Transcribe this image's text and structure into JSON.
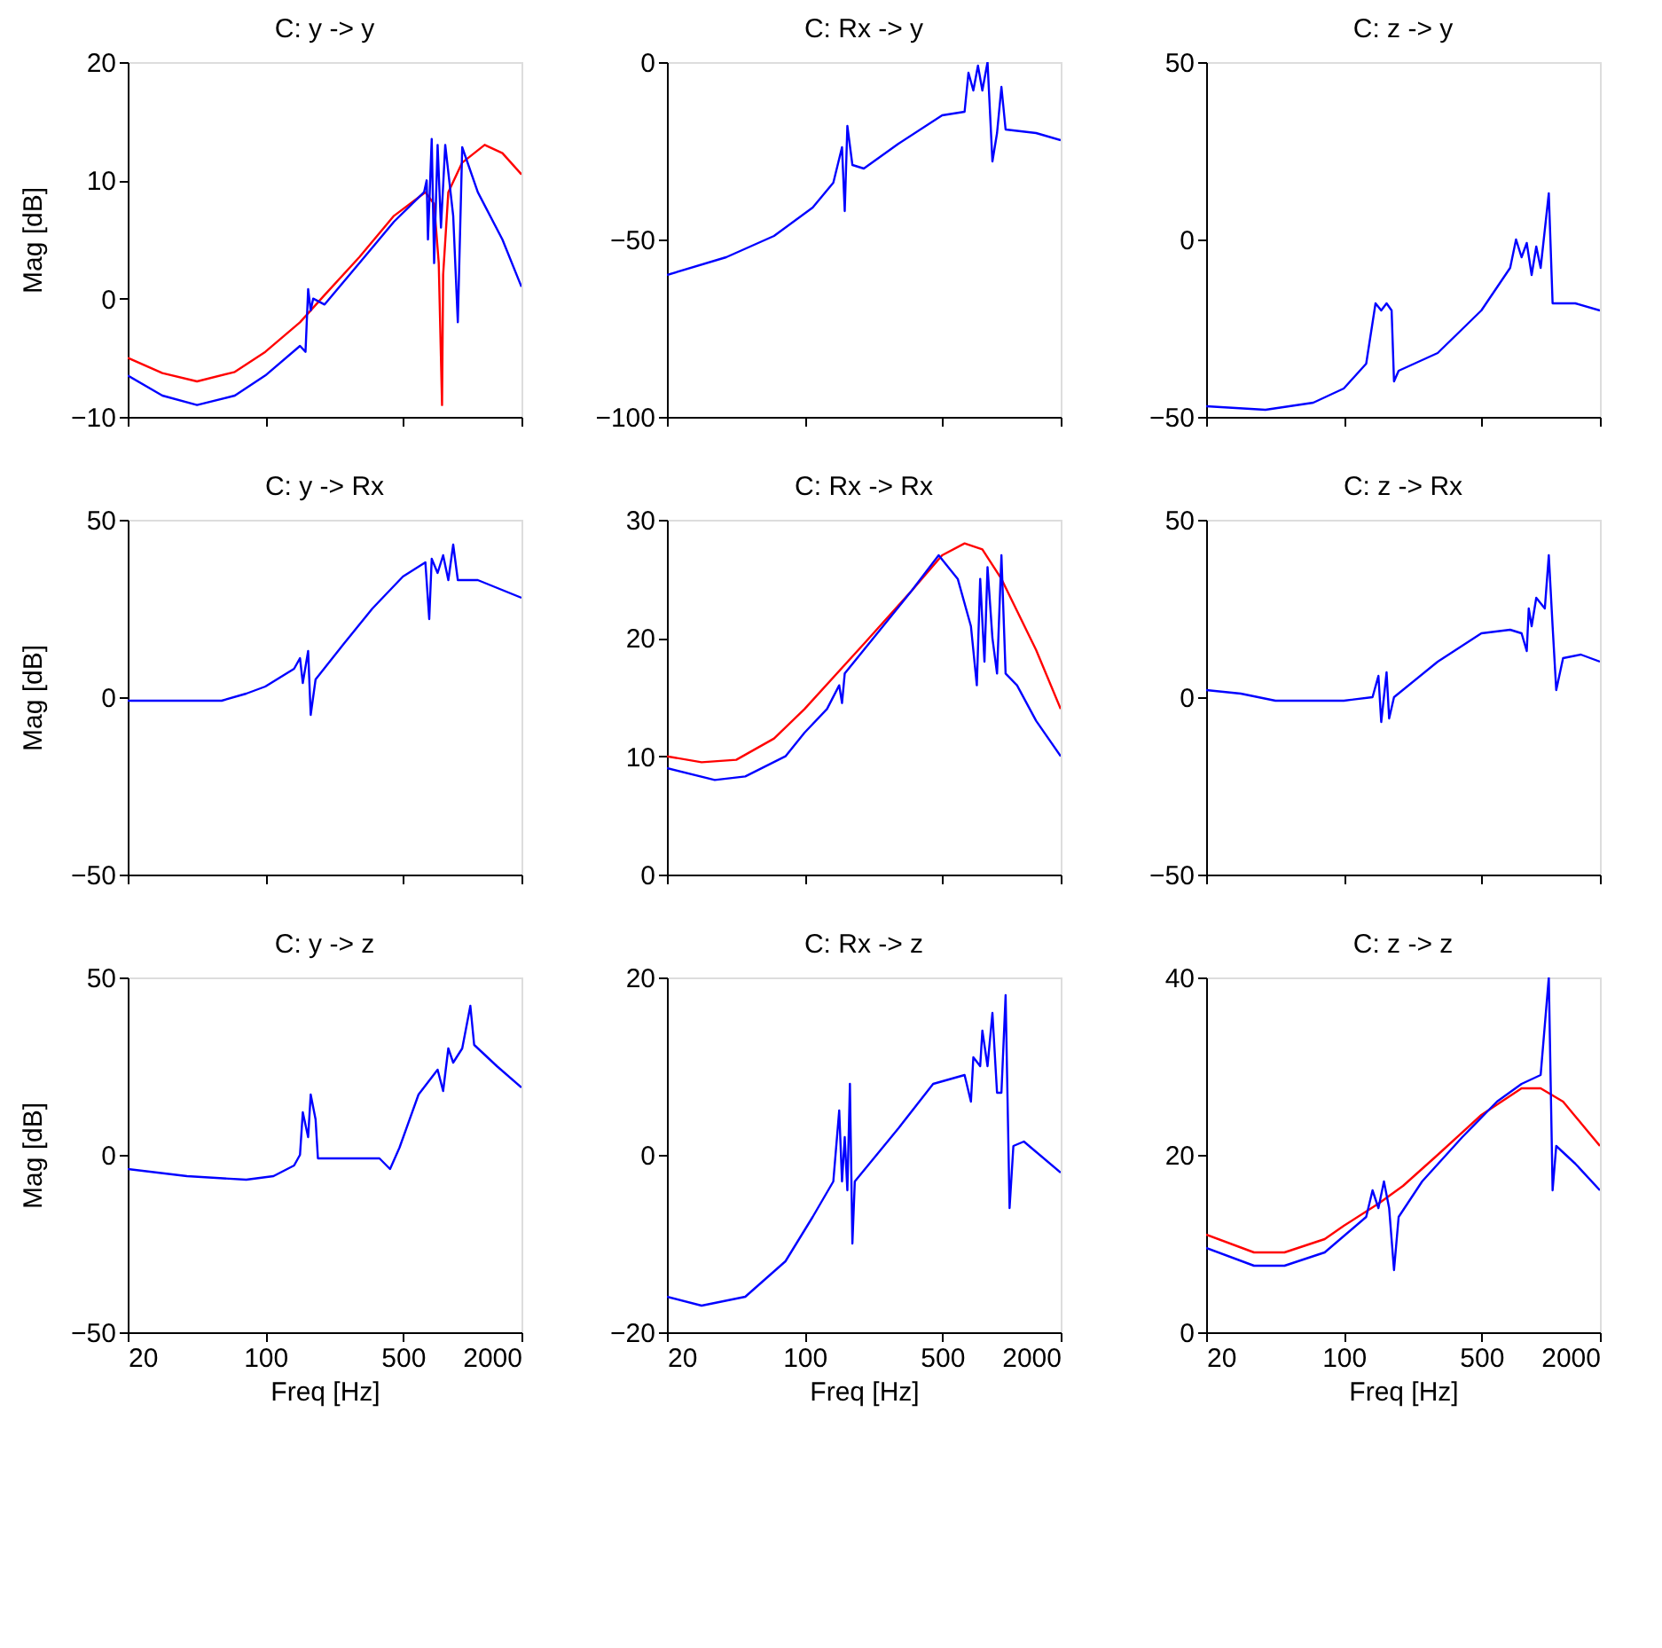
{
  "chart_data": [
    {
      "type": "line",
      "title": "C: y -> y",
      "ylabel": "Mag [dB]",
      "xlim": [
        20,
        2000
      ],
      "xticks": [
        20,
        100,
        500,
        2000
      ],
      "ylim": [
        -10,
        20
      ],
      "yticks": [
        -10,
        0,
        10,
        20
      ],
      "log": "x",
      "grid": false,
      "tick_labels": "y",
      "series": [
        {
          "color": "#ff0000",
          "x": [
            20,
            30,
            45,
            70,
            100,
            150,
            200,
            300,
            450,
            650,
            720,
            760,
            790,
            800,
            850,
            1000,
            1300,
            1600,
            2000
          ],
          "values": [
            -5,
            -6.3,
            -7,
            -6.2,
            -4.5,
            -2,
            0.3,
            3.5,
            7,
            9,
            8,
            3,
            -9,
            2,
            9,
            11.5,
            13,
            12.3,
            10.5
          ]
        },
        {
          "color": "#0000ff",
          "x": [
            20,
            30,
            45,
            70,
            100,
            150,
            160,
            165,
            170,
            175,
            200,
            300,
            450,
            640,
            660,
            670,
            700,
            720,
            750,
            780,
            820,
            900,
            950,
            1000,
            1200,
            1600,
            2000
          ],
          "values": [
            -6.5,
            -8.2,
            -9,
            -8.2,
            -6.5,
            -4,
            -4.5,
            0.8,
            -1,
            0,
            -0.5,
            3,
            6.5,
            9,
            10,
            5,
            13.5,
            3,
            13,
            6,
            13,
            7,
            -2,
            12.8,
            9,
            5,
            1
          ]
        }
      ]
    },
    {
      "type": "line",
      "title": "C: Rx -> y",
      "xlim": [
        20,
        2000
      ],
      "xticks": [
        20,
        100,
        500,
        2000
      ],
      "ylim": [
        -100,
        0
      ],
      "yticks": [
        -100,
        -50,
        0
      ],
      "log": "x",
      "grid": false,
      "tick_labels": "y",
      "series": [
        {
          "color": "#0000ff",
          "x": [
            20,
            40,
            70,
            110,
            140,
            155,
            160,
            165,
            175,
            200,
            300,
            500,
            650,
            680,
            720,
            760,
            800,
            850,
            900,
            950,
            1000,
            1050,
            1500,
            2000
          ],
          "values": [
            -60,
            -55,
            -49,
            -41,
            -34,
            -24,
            -42,
            -18,
            -29,
            -30,
            -23,
            -15,
            -14,
            -3,
            -8,
            -1,
            -8,
            0,
            -28,
            -20,
            -7,
            -19,
            -20,
            -22
          ]
        }
      ]
    },
    {
      "type": "line",
      "title": "C: z -> y",
      "xlim": [
        20,
        2000
      ],
      "xticks": [
        20,
        100,
        500,
        2000
      ],
      "ylim": [
        -50,
        50
      ],
      "yticks": [
        -50,
        0,
        50
      ],
      "log": "x",
      "grid": false,
      "tick_labels": "y",
      "series": [
        {
          "color": "#0000ff",
          "x": [
            20,
            40,
            70,
            100,
            130,
            145,
            155,
            165,
            175,
            180,
            190,
            300,
            500,
            700,
            750,
            800,
            850,
            900,
            950,
            1000,
            1100,
            1150,
            1500,
            2000
          ],
          "values": [
            -47,
            -48,
            -46,
            -42,
            -35,
            -18,
            -20,
            -18,
            -20,
            -40,
            -37,
            -32,
            -20,
            -8,
            0,
            -5,
            -1,
            -10,
            -2,
            -8,
            13,
            -18,
            -18,
            -20
          ]
        }
      ]
    },
    {
      "type": "line",
      "title": "C: y -> Rx",
      "ylabel": "Mag [dB]",
      "xlim": [
        20,
        2000
      ],
      "xticks": [
        20,
        100,
        500,
        2000
      ],
      "ylim": [
        -50,
        50
      ],
      "yticks": [
        -50,
        0,
        50
      ],
      "log": "x",
      "grid": false,
      "tick_labels": "y",
      "series": [
        {
          "color": "#0000ff",
          "x": [
            20,
            40,
            60,
            80,
            100,
            140,
            150,
            155,
            165,
            170,
            180,
            250,
            350,
            500,
            650,
            680,
            700,
            750,
            800,
            850,
            900,
            950,
            1200,
            2000
          ],
          "values": [
            -1,
            -1,
            -1,
            1,
            3,
            8,
            11,
            4,
            13,
            -5,
            5,
            15,
            25,
            34,
            38,
            22,
            39,
            35,
            40,
            33,
            43,
            33,
            33,
            28
          ]
        }
      ]
    },
    {
      "type": "line",
      "title": "C: Rx -> Rx",
      "xlim": [
        20,
        2000
      ],
      "xticks": [
        20,
        100,
        500,
        2000
      ],
      "ylim": [
        0,
        30
      ],
      "yticks": [
        0,
        10,
        20,
        30
      ],
      "log": "x",
      "grid": false,
      "tick_labels": "y",
      "series": [
        {
          "color": "#ff0000",
          "x": [
            20,
            30,
            45,
            70,
            100,
            200,
            350,
            500,
            650,
            800,
            1000,
            1500,
            2000
          ],
          "values": [
            10,
            9.5,
            9.7,
            11.5,
            14,
            19.5,
            24,
            27,
            28,
            27.5,
            25,
            19,
            14
          ]
        },
        {
          "color": "#0000ff",
          "x": [
            20,
            35,
            50,
            80,
            100,
            130,
            150,
            155,
            160,
            200,
            350,
            480,
            600,
            700,
            750,
            780,
            820,
            850,
            900,
            950,
            1000,
            1050,
            1200,
            1500,
            2000
          ],
          "values": [
            9,
            8,
            8.3,
            10,
            12,
            14,
            16,
            14.5,
            17,
            19,
            24,
            27,
            25,
            21,
            16,
            25,
            18,
            26,
            20,
            17,
            27,
            17,
            16,
            13,
            10
          ]
        }
      ]
    },
    {
      "type": "line",
      "title": "C: z -> Rx",
      "xlim": [
        20,
        2000
      ],
      "xticks": [
        20,
        100,
        500,
        2000
      ],
      "ylim": [
        -50,
        50
      ],
      "yticks": [
        -50,
        0,
        50
      ],
      "log": "x",
      "grid": false,
      "tick_labels": "y",
      "series": [
        {
          "color": "#0000ff",
          "x": [
            20,
            30,
            45,
            100,
            140,
            150,
            155,
            165,
            170,
            180,
            300,
            500,
            700,
            800,
            850,
            870,
            900,
            950,
            1050,
            1100,
            1150,
            1200,
            1300,
            1600,
            2000
          ],
          "values": [
            2,
            1,
            -1,
            -1,
            0,
            6,
            -7,
            7,
            -6,
            0,
            10,
            18,
            19,
            18,
            13,
            25,
            20,
            28,
            25,
            40,
            20,
            2,
            11,
            12,
            10
          ]
        }
      ]
    },
    {
      "type": "line",
      "title": "C: y -> z",
      "xlabel": "Freq [Hz]",
      "ylabel": "Mag [dB]",
      "xlim": [
        20,
        2000
      ],
      "xticks": [
        20,
        100,
        500,
        2000
      ],
      "ylim": [
        -50,
        50
      ],
      "yticks": [
        -50,
        0,
        50
      ],
      "log": "x",
      "grid": false,
      "series": [
        {
          "color": "#0000ff",
          "x": [
            20,
            40,
            80,
            110,
            140,
            150,
            155,
            165,
            170,
            180,
            185,
            250,
            380,
            430,
            480,
            600,
            750,
            800,
            850,
            900,
            1000,
            1100,
            1150,
            1500,
            2000
          ],
          "values": [
            -4,
            -6,
            -7,
            -6,
            -3,
            0,
            12,
            5,
            17,
            10,
            -1,
            -1,
            -1,
            -4,
            2,
            17,
            24,
            18,
            30,
            26,
            30,
            42,
            31,
            25,
            19
          ]
        }
      ]
    },
    {
      "type": "line",
      "title": "C: Rx -> z",
      "xlabel": "Freq [Hz]",
      "xlim": [
        20,
        2000
      ],
      "xticks": [
        20,
        100,
        500,
        2000
      ],
      "ylim": [
        -20,
        20
      ],
      "yticks": [
        -20,
        0,
        20
      ],
      "log": "x",
      "grid": false,
      "series": [
        {
          "color": "#0000ff",
          "x": [
            20,
            30,
            50,
            80,
            110,
            140,
            150,
            155,
            160,
            165,
            170,
            175,
            180,
            300,
            450,
            650,
            700,
            720,
            780,
            800,
            850,
            900,
            950,
            1000,
            1050,
            1100,
            1150,
            1300,
            2000
          ],
          "values": [
            -16,
            -17,
            -16,
            -12,
            -7,
            -3,
            5,
            -3,
            2,
            -4,
            8,
            -10,
            -3,
            3,
            8,
            9,
            6,
            11,
            10,
            14,
            10,
            16,
            7,
            7,
            18,
            -6,
            1,
            1.5,
            -2
          ]
        }
      ]
    },
    {
      "type": "line",
      "title": "C: z -> z",
      "xlabel": "Freq [Hz]",
      "xlim": [
        20,
        2000
      ],
      "xticks": [
        20,
        100,
        500,
        2000
      ],
      "ylim": [
        0,
        40
      ],
      "yticks": [
        0,
        20,
        40
      ],
      "log": "x",
      "grid": false,
      "series": [
        {
          "color": "#ff0000",
          "x": [
            20,
            35,
            50,
            80,
            100,
            150,
            200,
            300,
            500,
            800,
            1000,
            1300,
            2000
          ],
          "values": [
            11,
            9,
            9,
            10.5,
            12,
            14.5,
            16.5,
            20,
            24.5,
            27.5,
            27.5,
            26,
            21
          ]
        },
        {
          "color": "#0000ff",
          "x": [
            20,
            35,
            50,
            80,
            130,
            140,
            150,
            160,
            170,
            180,
            190,
            250,
            400,
            600,
            800,
            1000,
            1100,
            1150,
            1200,
            1500,
            2000
          ],
          "values": [
            9.5,
            7.5,
            7.5,
            9,
            13,
            16,
            14,
            17,
            14,
            7,
            13,
            17,
            22,
            26,
            28,
            29,
            40,
            16,
            21,
            19,
            16
          ]
        }
      ]
    }
  ]
}
